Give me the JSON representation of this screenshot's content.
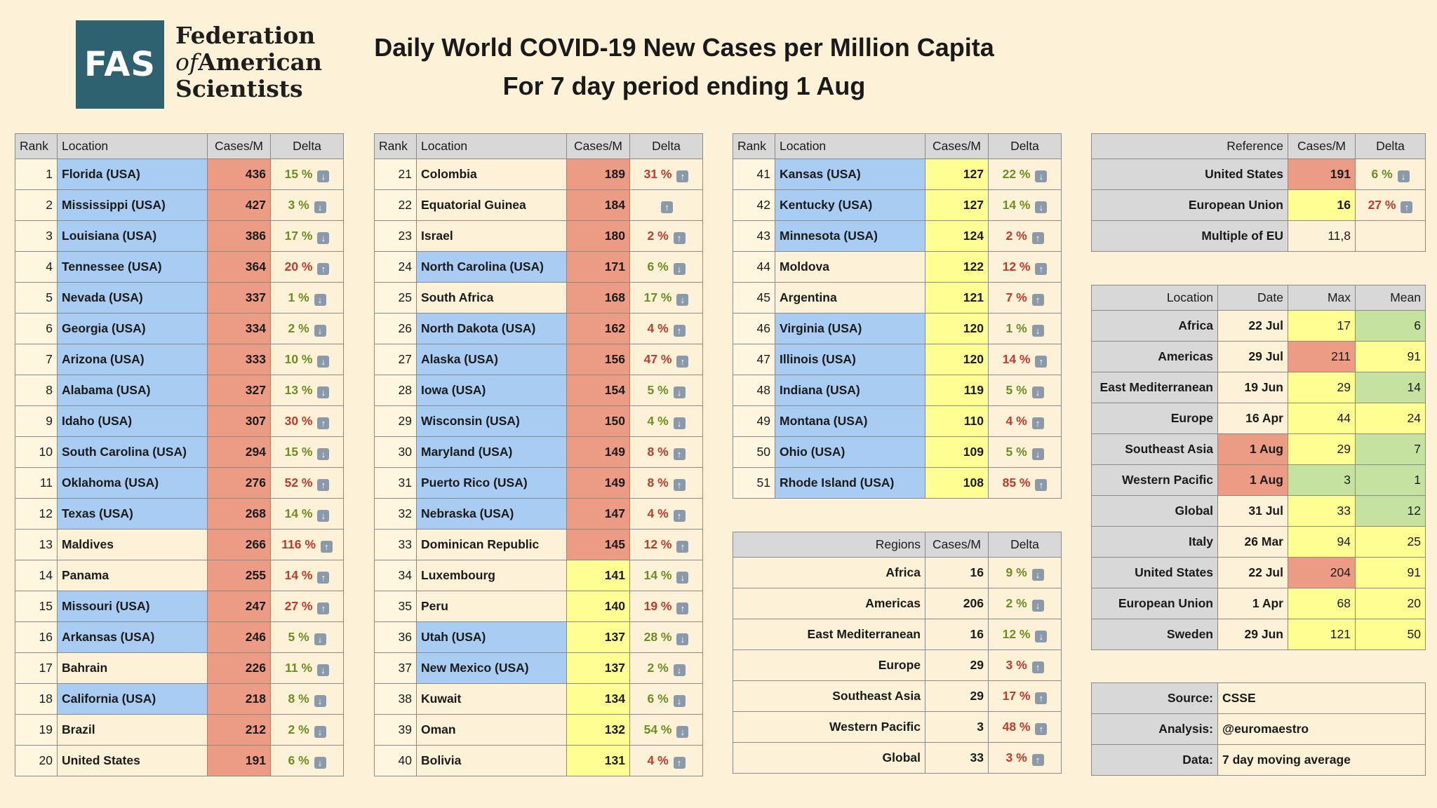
{
  "header": {
    "logo_abbr": "FAS",
    "logo_line1": "Federation",
    "logo_line2_italic": "of",
    "logo_line2_rest": "American",
    "logo_line3": "Scientists",
    "title": "Daily World COVID-19 New Cases per Million Capita",
    "subtitle": "For 7 day period ending 1 Aug"
  },
  "rank_headers": {
    "rank": "Rank",
    "location": "Location",
    "cases": "Cases/M",
    "delta": "Delta"
  },
  "rank_tables": [
    [
      {
        "rank": "1",
        "loc": "Florida (USA)",
        "cases": "436",
        "delta": "15 %",
        "dir": "down",
        "usa": true,
        "color": "red"
      },
      {
        "rank": "2",
        "loc": "Mississippi (USA)",
        "cases": "427",
        "delta": "3 %",
        "dir": "down",
        "usa": true,
        "color": "red"
      },
      {
        "rank": "3",
        "loc": "Louisiana (USA)",
        "cases": "386",
        "delta": "17 %",
        "dir": "down",
        "usa": true,
        "color": "red"
      },
      {
        "rank": "4",
        "loc": "Tennessee (USA)",
        "cases": "364",
        "delta": "20 %",
        "dir": "up",
        "usa": true,
        "color": "red"
      },
      {
        "rank": "5",
        "loc": "Nevada (USA)",
        "cases": "337",
        "delta": "1 %",
        "dir": "down",
        "usa": true,
        "color": "red"
      },
      {
        "rank": "6",
        "loc": "Georgia (USA)",
        "cases": "334",
        "delta": "2 %",
        "dir": "down",
        "usa": true,
        "color": "red"
      },
      {
        "rank": "7",
        "loc": "Arizona (USA)",
        "cases": "333",
        "delta": "10 %",
        "dir": "down",
        "usa": true,
        "color": "red"
      },
      {
        "rank": "8",
        "loc": "Alabama (USA)",
        "cases": "327",
        "delta": "13 %",
        "dir": "down",
        "usa": true,
        "color": "red"
      },
      {
        "rank": "9",
        "loc": "Idaho (USA)",
        "cases": "307",
        "delta": "30 %",
        "dir": "up",
        "usa": true,
        "color": "red"
      },
      {
        "rank": "10",
        "loc": "South Carolina (USA)",
        "cases": "294",
        "delta": "15 %",
        "dir": "down",
        "usa": true,
        "color": "red"
      },
      {
        "rank": "11",
        "loc": "Oklahoma (USA)",
        "cases": "276",
        "delta": "52 %",
        "dir": "up",
        "usa": true,
        "color": "red"
      },
      {
        "rank": "12",
        "loc": "Texas (USA)",
        "cases": "268",
        "delta": "14 %",
        "dir": "down",
        "usa": true,
        "color": "red"
      },
      {
        "rank": "13",
        "loc": "Maldives",
        "cases": "266",
        "delta": "116 %",
        "dir": "up",
        "usa": false,
        "color": "red"
      },
      {
        "rank": "14",
        "loc": "Panama",
        "cases": "255",
        "delta": "14 %",
        "dir": "up",
        "usa": false,
        "color": "red"
      },
      {
        "rank": "15",
        "loc": "Missouri (USA)",
        "cases": "247",
        "delta": "27 %",
        "dir": "up",
        "usa": true,
        "color": "red"
      },
      {
        "rank": "16",
        "loc": "Arkansas (USA)",
        "cases": "246",
        "delta": "5 %",
        "dir": "down",
        "usa": true,
        "color": "red"
      },
      {
        "rank": "17",
        "loc": "Bahrain",
        "cases": "226",
        "delta": "11 %",
        "dir": "down",
        "usa": false,
        "color": "red"
      },
      {
        "rank": "18",
        "loc": "California (USA)",
        "cases": "218",
        "delta": "8 %",
        "dir": "down",
        "usa": true,
        "color": "red"
      },
      {
        "rank": "19",
        "loc": "Brazil",
        "cases": "212",
        "delta": "2 %",
        "dir": "down",
        "usa": false,
        "color": "red"
      },
      {
        "rank": "20",
        "loc": "United States",
        "cases": "191",
        "delta": "6 %",
        "dir": "down",
        "usa": false,
        "color": "red"
      }
    ],
    [
      {
        "rank": "21",
        "loc": "Colombia",
        "cases": "189",
        "delta": "31 %",
        "dir": "up",
        "usa": false,
        "color": "red"
      },
      {
        "rank": "22",
        "loc": "Equatorial Guinea",
        "cases": "184",
        "delta": "",
        "dir": "up",
        "usa": false,
        "color": "red"
      },
      {
        "rank": "23",
        "loc": "Israel",
        "cases": "180",
        "delta": "2 %",
        "dir": "up",
        "usa": false,
        "color": "red"
      },
      {
        "rank": "24",
        "loc": "North Carolina (USA)",
        "cases": "171",
        "delta": "6 %",
        "dir": "down",
        "usa": true,
        "color": "red"
      },
      {
        "rank": "25",
        "loc": "South Africa",
        "cases": "168",
        "delta": "17 %",
        "dir": "down",
        "usa": false,
        "color": "red"
      },
      {
        "rank": "26",
        "loc": "North Dakota (USA)",
        "cases": "162",
        "delta": "4 %",
        "dir": "up",
        "usa": true,
        "color": "red"
      },
      {
        "rank": "27",
        "loc": "Alaska (USA)",
        "cases": "156",
        "delta": "47 %",
        "dir": "up",
        "usa": true,
        "color": "red"
      },
      {
        "rank": "28",
        "loc": "Iowa (USA)",
        "cases": "154",
        "delta": "5 %",
        "dir": "down",
        "usa": true,
        "color": "red"
      },
      {
        "rank": "29",
        "loc": "Wisconsin (USA)",
        "cases": "150",
        "delta": "4 %",
        "dir": "down",
        "usa": true,
        "color": "red"
      },
      {
        "rank": "30",
        "loc": "Maryland (USA)",
        "cases": "149",
        "delta": "8 %",
        "dir": "up",
        "usa": true,
        "color": "red"
      },
      {
        "rank": "31",
        "loc": "Puerto Rico (USA)",
        "cases": "149",
        "delta": "8 %",
        "dir": "up",
        "usa": true,
        "color": "red"
      },
      {
        "rank": "32",
        "loc": "Nebraska (USA)",
        "cases": "147",
        "delta": "4 %",
        "dir": "up",
        "usa": true,
        "color": "red"
      },
      {
        "rank": "33",
        "loc": "Dominican Republic",
        "cases": "145",
        "delta": "12 %",
        "dir": "up",
        "usa": false,
        "color": "red"
      },
      {
        "rank": "34",
        "loc": "Luxembourg",
        "cases": "141",
        "delta": "14 %",
        "dir": "down",
        "usa": false,
        "color": "yellow"
      },
      {
        "rank": "35",
        "loc": "Peru",
        "cases": "140",
        "delta": "19 %",
        "dir": "up",
        "usa": false,
        "color": "yellow"
      },
      {
        "rank": "36",
        "loc": "Utah (USA)",
        "cases": "137",
        "delta": "28 %",
        "dir": "down",
        "usa": true,
        "color": "yellow"
      },
      {
        "rank": "37",
        "loc": "New Mexico (USA)",
        "cases": "137",
        "delta": "2 %",
        "dir": "down",
        "usa": true,
        "color": "yellow"
      },
      {
        "rank": "38",
        "loc": "Kuwait",
        "cases": "134",
        "delta": "6 %",
        "dir": "down",
        "usa": false,
        "color": "yellow"
      },
      {
        "rank": "39",
        "loc": "Oman",
        "cases": "132",
        "delta": "54 %",
        "dir": "down",
        "usa": false,
        "color": "yellow"
      },
      {
        "rank": "40",
        "loc": "Bolivia",
        "cases": "131",
        "delta": "4 %",
        "dir": "up",
        "usa": false,
        "color": "yellow"
      }
    ],
    [
      {
        "rank": "41",
        "loc": "Kansas (USA)",
        "cases": "127",
        "delta": "22 %",
        "dir": "down",
        "usa": true,
        "color": "yellow"
      },
      {
        "rank": "42",
        "loc": "Kentucky (USA)",
        "cases": "127",
        "delta": "14 %",
        "dir": "down",
        "usa": true,
        "color": "yellow"
      },
      {
        "rank": "43",
        "loc": "Minnesota (USA)",
        "cases": "124",
        "delta": "2 %",
        "dir": "up",
        "usa": true,
        "color": "yellow"
      },
      {
        "rank": "44",
        "loc": "Moldova",
        "cases": "122",
        "delta": "12 %",
        "dir": "up",
        "usa": false,
        "color": "yellow"
      },
      {
        "rank": "45",
        "loc": "Argentina",
        "cases": "121",
        "delta": "7 %",
        "dir": "up",
        "usa": false,
        "color": "yellow"
      },
      {
        "rank": "46",
        "loc": "Virginia (USA)",
        "cases": "120",
        "delta": "1 %",
        "dir": "down",
        "usa": true,
        "color": "yellow"
      },
      {
        "rank": "47",
        "loc": "Illinois (USA)",
        "cases": "120",
        "delta": "14 %",
        "dir": "up",
        "usa": true,
        "color": "yellow"
      },
      {
        "rank": "48",
        "loc": "Indiana (USA)",
        "cases": "119",
        "delta": "5 %",
        "dir": "down",
        "usa": true,
        "color": "yellow"
      },
      {
        "rank": "49",
        "loc": "Montana (USA)",
        "cases": "110",
        "delta": "4 %",
        "dir": "up",
        "usa": true,
        "color": "yellow"
      },
      {
        "rank": "50",
        "loc": "Ohio (USA)",
        "cases": "109",
        "delta": "5 %",
        "dir": "down",
        "usa": true,
        "color": "yellow"
      },
      {
        "rank": "51",
        "loc": "Rhode Island (USA)",
        "cases": "108",
        "delta": "85 %",
        "dir": "up",
        "usa": true,
        "color": "yellow"
      }
    ]
  ],
  "regions": {
    "headers": {
      "label": "Regions",
      "cases": "Cases/M",
      "delta": "Delta"
    },
    "rows": [
      {
        "label": "Africa",
        "cases": "16",
        "delta": "9 %",
        "dir": "down"
      },
      {
        "label": "Americas",
        "cases": "206",
        "delta": "2 %",
        "dir": "down"
      },
      {
        "label": "East Mediterranean",
        "cases": "16",
        "delta": "12 %",
        "dir": "down"
      },
      {
        "label": "Europe",
        "cases": "29",
        "delta": "3 %",
        "dir": "up"
      },
      {
        "label": "Southeast Asia",
        "cases": "29",
        "delta": "17 %",
        "dir": "up"
      },
      {
        "label": "Western Pacific",
        "cases": "3",
        "delta": "48 %",
        "dir": "up"
      },
      {
        "label": "Global",
        "cases": "33",
        "delta": "3 %",
        "dir": "up"
      }
    ]
  },
  "reference": {
    "headers": {
      "label": "Reference",
      "cases": "Cases/M",
      "delta": "Delta"
    },
    "rows": [
      {
        "label": "United States",
        "cases": "191",
        "delta": "6 %",
        "dir": "down",
        "color": "red"
      },
      {
        "label": "European Union",
        "cases": "16",
        "delta": "27 %",
        "dir": "up",
        "color": "yellow"
      },
      {
        "label": "Multiple of EU",
        "cases": "11,8",
        "delta": "",
        "dir": "",
        "color": "white"
      }
    ]
  },
  "peaks": {
    "headers": {
      "label": "Location",
      "date": "Date",
      "max": "Max",
      "mean": "Mean"
    },
    "rows": [
      {
        "label": "Africa",
        "date": "22 Jul",
        "max": "17",
        "mean": "6",
        "date_color": "white",
        "max_color": "yellow",
        "mean_color": "green"
      },
      {
        "label": "Americas",
        "date": "29 Jul",
        "max": "211",
        "mean": "91",
        "date_color": "white",
        "max_color": "red",
        "mean_color": "yellow"
      },
      {
        "label": "East Mediterranean",
        "date": "19 Jun",
        "max": "29",
        "mean": "14",
        "date_color": "white",
        "max_color": "yellow",
        "mean_color": "green"
      },
      {
        "label": "Europe",
        "date": "16 Apr",
        "max": "44",
        "mean": "24",
        "date_color": "white",
        "max_color": "yellow",
        "mean_color": "yellow"
      },
      {
        "label": "Southeast Asia",
        "date": "1 Aug",
        "max": "29",
        "mean": "7",
        "date_color": "red",
        "max_color": "yellow",
        "mean_color": "green"
      },
      {
        "label": "Western Pacific",
        "date": "1 Aug",
        "max": "3",
        "mean": "1",
        "date_color": "red",
        "max_color": "green",
        "mean_color": "green"
      },
      {
        "label": "Global",
        "date": "31 Jul",
        "max": "33",
        "mean": "12",
        "date_color": "white",
        "max_color": "yellow",
        "mean_color": "green"
      },
      {
        "label": "Italy",
        "date": "26 Mar",
        "max": "94",
        "mean": "25",
        "date_color": "white",
        "max_color": "yellow",
        "mean_color": "yellow"
      },
      {
        "label": "United States",
        "date": "22 Jul",
        "max": "204",
        "mean": "91",
        "date_color": "white",
        "max_color": "red",
        "mean_color": "yellow"
      },
      {
        "label": "European Union",
        "date": "1 Apr",
        "max": "68",
        "mean": "20",
        "date_color": "white",
        "max_color": "yellow",
        "mean_color": "yellow"
      },
      {
        "label": "Sweden",
        "date": "29 Jun",
        "max": "121",
        "mean": "50",
        "date_color": "white",
        "max_color": "yellow",
        "mean_color": "yellow"
      }
    ]
  },
  "sources": [
    {
      "label": "Source:",
      "value": "CSSE"
    },
    {
      "label": "Analysis:",
      "value": "@euromaestro"
    },
    {
      "label": "Data:",
      "value": "7 day moving average"
    }
  ],
  "colors": {
    "usa_blue": "#a9cdf2",
    "high_red": "#ec9c85",
    "mid_yellow": "#fefe92",
    "low_green": "#c6e2a0",
    "delta_up": "#c0392b",
    "delta_down": "#6b8e23",
    "background": "#fdf2d8",
    "logo": "#2f6270"
  },
  "icons": {
    "up": "arrow-up-icon",
    "down": "arrow-down-icon"
  }
}
